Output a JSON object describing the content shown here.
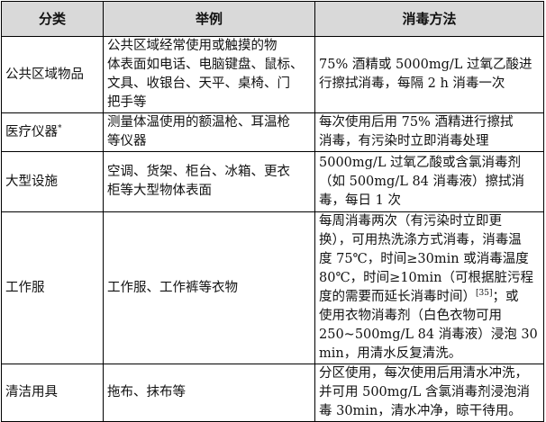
{
  "table": {
    "headers": [
      "分类",
      "举例",
      "消毒方法"
    ],
    "rows": [
      {
        "category": "公共区域物品",
        "category_sup": "",
        "examples": [
          "公共区域经常使用或触摸的物",
          "体表面如电话、电脑键盘、鼠标、",
          "文具、收银台、天平、桌椅、门",
          "把手等"
        ],
        "method": [
          "75% 酒精或 5000mg/L 过氧乙酸进",
          "行擦拭消毒，每隔 2 h 消毒一次"
        ]
      },
      {
        "category": "医疗仪器",
        "category_sup": "*",
        "examples": [
          "测量体温使用的额温枪、耳温枪",
          "等仪器"
        ],
        "method": [
          "每次使用后用 75% 酒精进行擦拭",
          "消毒，有污染时立即消毒处理"
        ]
      },
      {
        "category": "大型设施",
        "category_sup": "",
        "examples": [
          "空调、货架、柜台、冰箱、更衣",
          "柜等大型物体表面"
        ],
        "method": [
          "5000mg/L 过氧乙酸或含氯消毒剂",
          "（如 500mg/L 84 消毒液）擦拭消",
          "毒，每日 1 次"
        ]
      },
      {
        "category": "工作服",
        "category_sup": "",
        "examples": [
          "工作服、工作裤等衣物"
        ],
        "method": [
          "每周消毒两次（有污染时立即更",
          "换），可用热洗涤方式消毒，消毒温",
          "度 75℃，时间≥30min 或消毒温度",
          "80℃，时间≥10min（可根据脏污程",
          "度的需要而延长消毒时间）[35]；或",
          "使用衣物消毒剂（白色衣物可用",
          "250~500mg/L 84 消毒液）浸泡 30",
          "min，用清水反复清洗。"
        ]
      },
      {
        "category": "清洁用具",
        "category_sup": "",
        "examples": [
          "拖布、抹布等"
        ],
        "method": [
          "分区使用，每次使用后用清水冲洗，",
          "并可用 500mg/L 含氯消毒剂浸泡消",
          "毒 30min，清水冲净，晾干待用。"
        ]
      }
    ]
  }
}
